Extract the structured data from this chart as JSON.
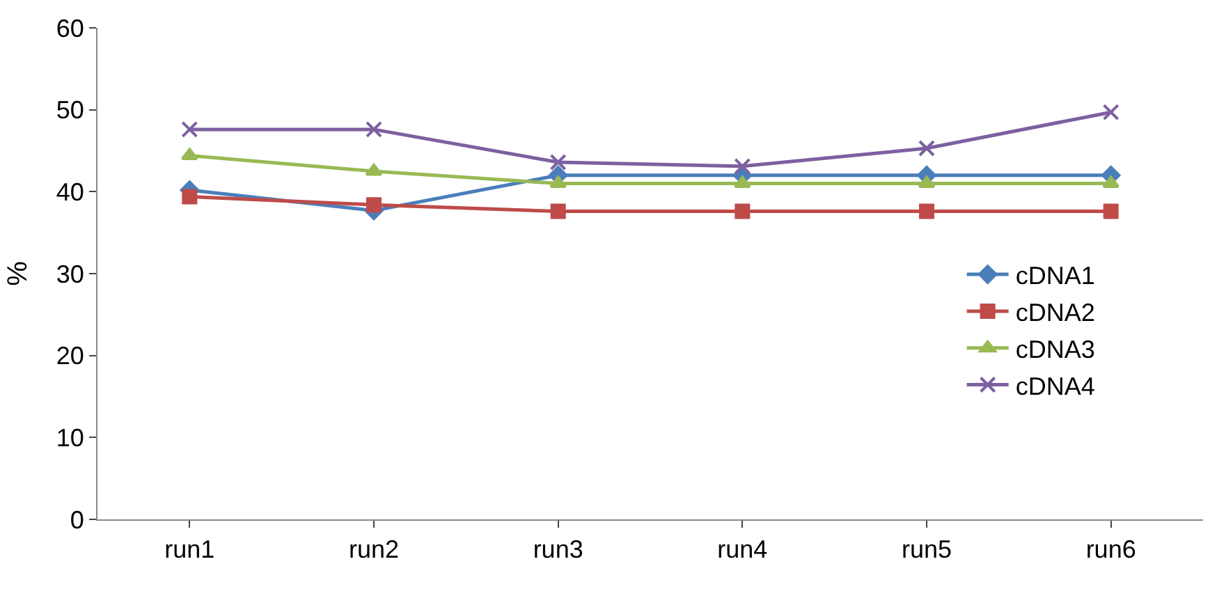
{
  "chart_data": {
    "type": "line",
    "ylabel": "%",
    "categories": [
      "run1",
      "run2",
      "run3",
      "run4",
      "run5",
      "run6"
    ],
    "series": [
      {
        "name": "cDNA1",
        "color": "#4a7ebb",
        "marker": "diamond",
        "values": [
          40.2,
          37.7,
          42.0,
          42.0,
          42.0,
          42.0
        ]
      },
      {
        "name": "cDNA2",
        "color": "#be4b48",
        "marker": "square",
        "values": [
          39.4,
          38.4,
          37.6,
          37.6,
          37.6,
          37.6
        ]
      },
      {
        "name": "cDNA3",
        "color": "#98b954",
        "marker": "triangle",
        "values": [
          44.4,
          42.5,
          41.0,
          41.0,
          41.0,
          41.0
        ]
      },
      {
        "name": "cDNA4",
        "color": "#7d60a0",
        "marker": "cross",
        "values": [
          47.6,
          47.6,
          43.6,
          43.1,
          45.3,
          49.7
        ]
      }
    ],
    "ylim": [
      0,
      60
    ],
    "yticks": [
      0,
      10,
      20,
      30,
      40,
      50,
      60
    ],
    "legend": "right"
  }
}
